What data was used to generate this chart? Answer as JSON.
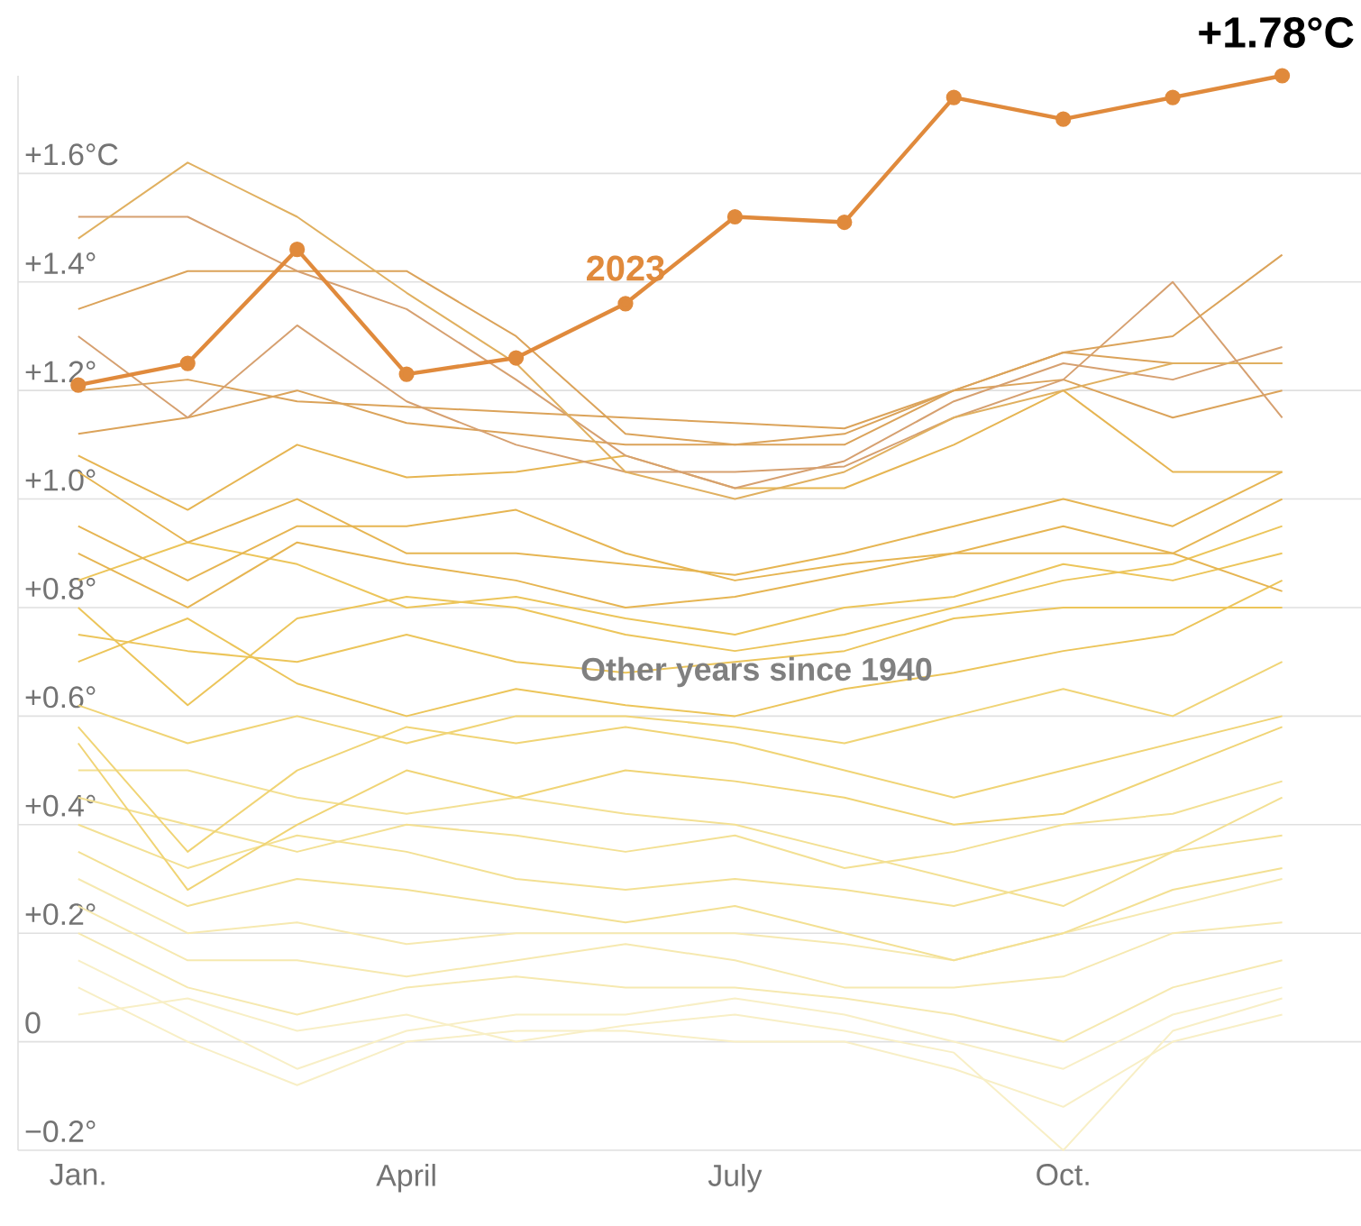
{
  "chart_data": {
    "type": "line",
    "categories": [
      "Jan.",
      null,
      null,
      "April",
      null,
      null,
      "July",
      null,
      null,
      "Oct.",
      null,
      null
    ],
    "yticks": [
      {
        "value": -0.2,
        "label": "−0.2°"
      },
      0,
      {
        "value": 0.2,
        "label": "+0.2°"
      },
      {
        "value": 0.4,
        "label": "+0.4°"
      },
      {
        "value": 0.6,
        "label": "+0.6°"
      },
      {
        "value": 0.8,
        "label": "+0.8°"
      },
      {
        "value": 1.0,
        "label": "+1.0°"
      },
      {
        "value": 1.2,
        "label": "+1.2°"
      },
      {
        "value": 1.4,
        "label": "+1.4°"
      },
      {
        "value": 1.6,
        "label": "+1.6°C"
      }
    ],
    "ylim": [
      -0.2,
      1.78
    ],
    "grid": "y",
    "marker": "none",
    "line_style": "solid",
    "annotations": [
      "+1.78°C",
      "Other years since 1940"
    ],
    "series": [
      {
        "color": "#f8efc6",
        "values": [
          0.05,
          0.08,
          0.02,
          0.05,
          0.0,
          0.03,
          0.05,
          0.02,
          -0.02,
          -0.2,
          0.02,
          0.08
        ]
      },
      {
        "color": "#f8efc6",
        "values": [
          0.1,
          0.0,
          -0.08,
          0.0,
          0.02,
          0.02,
          0.0,
          0.0,
          -0.05,
          -0.12,
          0.0,
          0.05
        ]
      },
      {
        "color": "#f8efc6",
        "values": [
          0.15,
          0.05,
          -0.05,
          0.02,
          0.05,
          0.05,
          0.08,
          0.05,
          0.0,
          -0.05,
          0.05,
          0.1
        ]
      },
      {
        "color": "#f6e9b0",
        "values": [
          0.2,
          0.1,
          0.05,
          0.1,
          0.12,
          0.1,
          0.1,
          0.08,
          0.05,
          0.0,
          0.1,
          0.15
        ]
      },
      {
        "color": "#f6e9b0",
        "values": [
          0.25,
          0.15,
          0.15,
          0.12,
          0.15,
          0.18,
          0.15,
          0.1,
          0.1,
          0.12,
          0.2,
          0.22
        ]
      },
      {
        "color": "#f6e9b0",
        "values": [
          0.3,
          0.2,
          0.22,
          0.18,
          0.2,
          0.2,
          0.2,
          0.18,
          0.15,
          0.2,
          0.25,
          0.3
        ]
      },
      {
        "color": "#f3e093",
        "values": [
          0.35,
          0.25,
          0.3,
          0.28,
          0.25,
          0.22,
          0.25,
          0.2,
          0.15,
          0.2,
          0.28,
          0.32
        ]
      },
      {
        "color": "#f3e093",
        "values": [
          0.4,
          0.32,
          0.38,
          0.35,
          0.3,
          0.28,
          0.3,
          0.28,
          0.25,
          0.3,
          0.35,
          0.38
        ]
      },
      {
        "color": "#f3e093",
        "values": [
          0.45,
          0.4,
          0.35,
          0.4,
          0.38,
          0.35,
          0.38,
          0.32,
          0.35,
          0.4,
          0.42,
          0.48
        ]
      },
      {
        "color": "#f3e093",
        "values": [
          0.5,
          0.5,
          0.45,
          0.42,
          0.45,
          0.42,
          0.4,
          0.35,
          0.3,
          0.25,
          0.35,
          0.45
        ]
      },
      {
        "color": "#f0d475",
        "values": [
          0.55,
          0.28,
          0.4,
          0.5,
          0.45,
          0.5,
          0.48,
          0.45,
          0.4,
          0.42,
          0.5,
          0.58
        ]
      },
      {
        "color": "#f0d475",
        "values": [
          0.58,
          0.35,
          0.5,
          0.58,
          0.55,
          0.58,
          0.55,
          0.5,
          0.45,
          0.5,
          0.55,
          0.6
        ]
      },
      {
        "color": "#f0d475",
        "values": [
          0.62,
          0.55,
          0.6,
          0.55,
          0.6,
          0.6,
          0.58,
          0.55,
          0.6,
          0.65,
          0.6,
          0.7
        ]
      },
      {
        "color": "#ecc55a",
        "values": [
          0.7,
          0.78,
          0.66,
          0.6,
          0.65,
          0.62,
          0.6,
          0.65,
          0.68,
          0.72,
          0.75,
          0.85
        ]
      },
      {
        "color": "#ecc55a",
        "values": [
          0.75,
          0.72,
          0.7,
          0.75,
          0.7,
          0.68,
          0.7,
          0.72,
          0.78,
          0.8,
          0.8,
          0.8
        ]
      },
      {
        "color": "#ecc55a",
        "values": [
          0.8,
          0.62,
          0.78,
          0.82,
          0.8,
          0.75,
          0.72,
          0.75,
          0.8,
          0.85,
          0.88,
          0.95
        ]
      },
      {
        "color": "#ecc55a",
        "values": [
          0.85,
          0.92,
          0.88,
          0.8,
          0.82,
          0.78,
          0.75,
          0.8,
          0.82,
          0.88,
          0.85,
          0.9
        ]
      },
      {
        "color": "#e6b552",
        "values": [
          0.9,
          0.8,
          0.92,
          0.88,
          0.85,
          0.8,
          0.82,
          0.86,
          0.9,
          0.95,
          0.9,
          0.83
        ]
      },
      {
        "color": "#e6b552",
        "values": [
          0.95,
          0.85,
          0.95,
          0.95,
          0.98,
          0.9,
          0.85,
          0.88,
          0.9,
          0.9,
          0.9,
          1.0
        ]
      },
      {
        "color": "#e6b552",
        "values": [
          1.05,
          0.92,
          1.0,
          0.9,
          0.9,
          0.88,
          0.86,
          0.9,
          0.95,
          1.0,
          0.95,
          1.05
        ]
      },
      {
        "color": "#e6b552",
        "values": [
          1.08,
          0.98,
          1.1,
          1.04,
          1.05,
          1.08,
          1.02,
          1.02,
          1.1,
          1.2,
          1.05,
          1.05
        ]
      },
      {
        "color": "#dba35a",
        "values": [
          1.12,
          1.15,
          1.2,
          1.14,
          1.12,
          1.1,
          1.1,
          1.12,
          1.2,
          1.22,
          1.15,
          1.2
        ]
      },
      {
        "color": "#dba35a",
        "values": [
          1.2,
          1.22,
          1.18,
          1.17,
          1.16,
          1.15,
          1.14,
          1.13,
          1.2,
          1.27,
          1.25,
          1.25
        ]
      },
      {
        "color": "#d6a070",
        "values": [
          1.3,
          1.15,
          1.32,
          1.18,
          1.1,
          1.05,
          1.05,
          1.06,
          1.15,
          1.22,
          1.4,
          1.15
        ]
      },
      {
        "color": "#dba35a",
        "values": [
          1.35,
          1.42,
          1.42,
          1.42,
          1.3,
          1.12,
          1.1,
          1.1,
          1.2,
          1.27,
          1.3,
          1.45
        ]
      },
      {
        "color": "#d6a070",
        "values": [
          1.52,
          1.52,
          1.42,
          1.35,
          1.22,
          1.08,
          1.02,
          1.07,
          1.18,
          1.25,
          1.22,
          1.28
        ]
      },
      {
        "color": "#e0b060",
        "values": [
          1.48,
          1.62,
          1.52,
          1.38,
          1.25,
          1.05,
          1.0,
          1.05,
          1.15,
          1.2,
          1.25,
          1.25
        ]
      },
      {
        "name": "2023",
        "color": "#e08a3c",
        "marker": "circle",
        "values": [
          1.21,
          1.25,
          1.46,
          1.23,
          1.26,
          1.36,
          1.52,
          1.51,
          1.74,
          1.7,
          1.74,
          1.78
        ]
      }
    ]
  }
}
